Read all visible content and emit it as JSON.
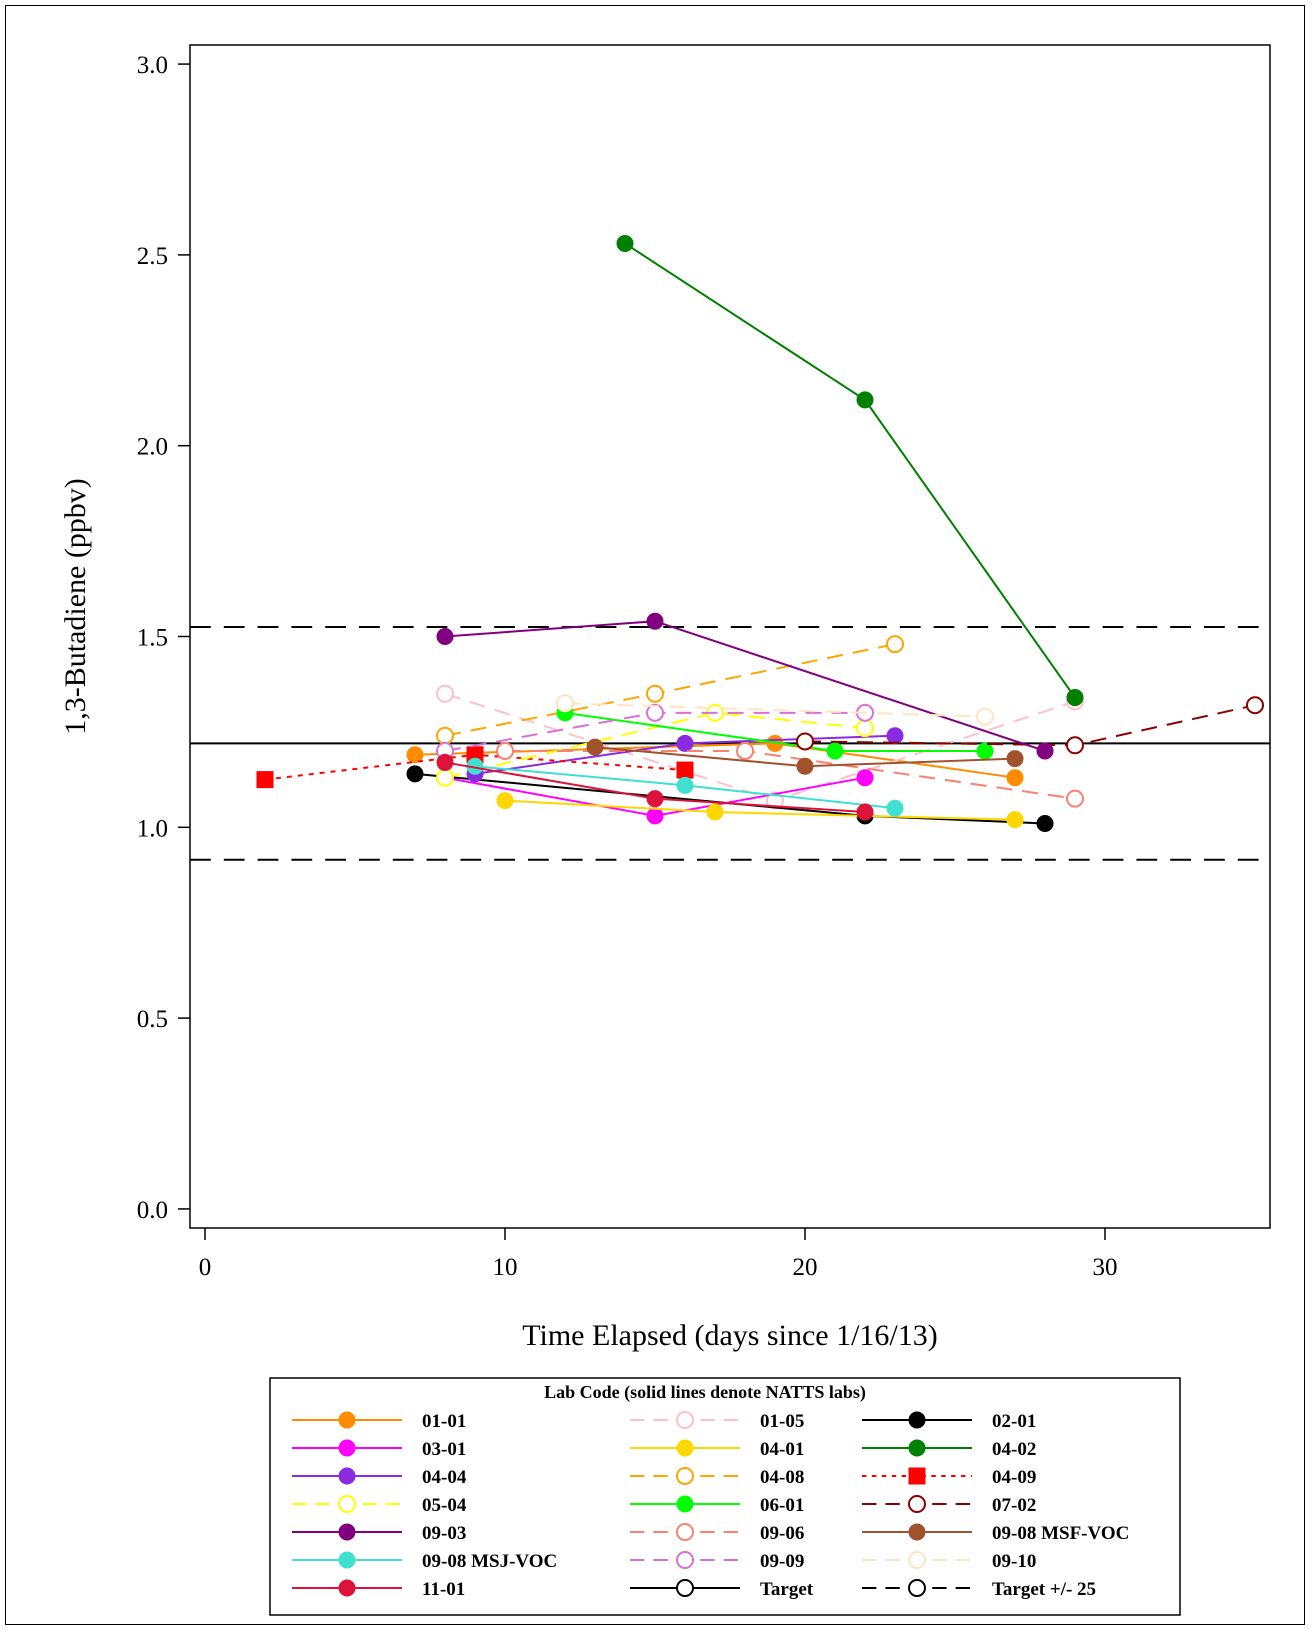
{
  "chart_data": {
    "type": "line",
    "title": "",
    "xlabel": "Time Elapsed (days since 1/16/13)",
    "ylabel": "1,3-Butadiene (ppbv)",
    "xlim": [
      -0.5,
      35.5
    ],
    "ylim": [
      -0.05,
      3.05
    ],
    "x_ticks": [
      0,
      10,
      20,
      30
    ],
    "x_tick_labels": [
      "0",
      "10",
      "20",
      "30"
    ],
    "y_ticks": [
      0,
      0.5,
      1,
      1.5,
      2,
      2.5,
      3
    ],
    "y_tick_labels": [
      "0.0",
      "0.5",
      "1.0",
      "1.5",
      "2.0",
      "2.5",
      "3.0"
    ],
    "grid": false,
    "legend_title": "Lab Code (solid lines denote NATTS labs)",
    "legend_position": "bottom",
    "reference_lines": [
      {
        "name": "Target",
        "y": 1.22,
        "color": "#000000",
        "dash": "solid"
      },
      {
        "name": "Target +/- 25",
        "y": 1.525,
        "color": "#000000",
        "dash": "dashed"
      },
      {
        "name": "Target +/- 25",
        "y": 0.915,
        "color": "#000000",
        "dash": "dashed"
      }
    ],
    "series": [
      {
        "name": "01-01",
        "color": "#FF8C00",
        "dash": "solid",
        "marker": "filled-circle",
        "x": [
          7,
          19,
          27
        ],
        "y": [
          1.19,
          1.22,
          1.13
        ]
      },
      {
        "name": "01-05",
        "color": "#FFC0CB",
        "dash": "dashed",
        "marker": "open-circle",
        "x": [
          8,
          19,
          29
        ],
        "y": [
          1.35,
          1.07,
          1.33
        ]
      },
      {
        "name": "02-01",
        "color": "#000000",
        "dash": "solid",
        "marker": "filled-circle",
        "x": [
          7,
          22,
          28
        ],
        "y": [
          1.14,
          1.03,
          1.01
        ]
      },
      {
        "name": "03-01",
        "color": "#FF00FF",
        "dash": "solid",
        "marker": "filled-circle",
        "x": [
          8,
          15,
          22
        ],
        "y": [
          1.13,
          1.03,
          1.13
        ]
      },
      {
        "name": "04-01",
        "color": "#FFD700",
        "dash": "solid",
        "marker": "filled-circle",
        "x": [
          10,
          17,
          27
        ],
        "y": [
          1.07,
          1.04,
          1.02
        ]
      },
      {
        "name": "04-02",
        "color": "#008000",
        "dash": "solid",
        "marker": "filled-circle",
        "x": [
          14,
          22,
          29
        ],
        "y": [
          2.53,
          2.12,
          1.34
        ]
      },
      {
        "name": "04-04",
        "color": "#8A2BE2",
        "dash": "solid",
        "marker": "filled-circle",
        "x": [
          9,
          16,
          23
        ],
        "y": [
          1.14,
          1.22,
          1.24
        ]
      },
      {
        "name": "04-08",
        "color": "#FFA500",
        "dash": "dashed",
        "marker": "open-circle",
        "x": [
          8,
          15,
          23
        ],
        "y": [
          1.24,
          1.35,
          1.48
        ]
      },
      {
        "name": "04-09",
        "color": "#FF0000",
        "dash": "dotted",
        "marker": "filled-square",
        "x": [
          2,
          9,
          16
        ],
        "y": [
          1.125,
          1.19,
          1.15
        ]
      },
      {
        "name": "05-04",
        "color": "#FFFF00",
        "dash": "dashed",
        "marker": "open-circle",
        "x": [
          8,
          17,
          22
        ],
        "y": [
          1.13,
          1.3,
          1.26
        ]
      },
      {
        "name": "06-01",
        "color": "#00FF00",
        "dash": "solid",
        "marker": "filled-circle",
        "x": [
          12,
          21,
          26
        ],
        "y": [
          1.3,
          1.2,
          1.2
        ]
      },
      {
        "name": "07-02",
        "color": "#8B0000",
        "dash": "dashed",
        "marker": "open-circle",
        "x": [
          20,
          29,
          35
        ],
        "y": [
          1.225,
          1.215,
          1.32
        ]
      },
      {
        "name": "09-03",
        "color": "#800080",
        "dash": "solid",
        "marker": "filled-circle",
        "x": [
          8,
          15,
          28
        ],
        "y": [
          1.5,
          1.54,
          1.2
        ]
      },
      {
        "name": "09-06",
        "color": "#FA8072",
        "dash": "dashed",
        "marker": "open-circle",
        "x": [
          10,
          18,
          29
        ],
        "y": [
          1.2,
          1.2,
          1.075
        ]
      },
      {
        "name": "09-08 MSF-VOC",
        "color": "#A0522D",
        "dash": "solid",
        "marker": "filled-circle",
        "x": [
          13,
          20,
          27
        ],
        "y": [
          1.21,
          1.16,
          1.18
        ]
      },
      {
        "name": "09-08 MSJ-VOC",
        "color": "#40E0D0",
        "dash": "solid",
        "marker": "filled-circle",
        "x": [
          9,
          16,
          23
        ],
        "y": [
          1.16,
          1.11,
          1.05
        ]
      },
      {
        "name": "09-09",
        "color": "#DA70D6",
        "dash": "dashed",
        "marker": "open-circle",
        "x": [
          8,
          15,
          22
        ],
        "y": [
          1.2,
          1.3,
          1.3
        ]
      },
      {
        "name": "09-10",
        "color": "#FFE4C4",
        "dash": "dashed",
        "marker": "open-circle",
        "x": [
          12,
          26
        ],
        "y": [
          1.325,
          1.29
        ]
      },
      {
        "name": "11-01",
        "color": "#DC143C",
        "dash": "solid",
        "marker": "filled-circle",
        "x": [
          8,
          15,
          22
        ],
        "y": [
          1.17,
          1.075,
          1.04
        ]
      }
    ],
    "legend_entries": [
      {
        "label": "01-01",
        "color": "#FF8C00",
        "dash": "solid",
        "marker": "filled-circle"
      },
      {
        "label": "01-05",
        "color": "#FFC0CB",
        "dash": "dashed",
        "marker": "open-circle"
      },
      {
        "label": "02-01",
        "color": "#000000",
        "dash": "solid",
        "marker": "filled-circle"
      },
      {
        "label": "03-01",
        "color": "#FF00FF",
        "dash": "solid",
        "marker": "filled-circle"
      },
      {
        "label": "04-01",
        "color": "#FFD700",
        "dash": "solid",
        "marker": "filled-circle"
      },
      {
        "label": "04-02",
        "color": "#008000",
        "dash": "solid",
        "marker": "filled-circle"
      },
      {
        "label": "04-04",
        "color": "#8A2BE2",
        "dash": "solid",
        "marker": "filled-circle"
      },
      {
        "label": "04-08",
        "color": "#FFA500",
        "dash": "dashed",
        "marker": "open-circle"
      },
      {
        "label": "04-09",
        "color": "#FF0000",
        "dash": "dotted",
        "marker": "filled-square"
      },
      {
        "label": "05-04",
        "color": "#FFFF00",
        "dash": "dashed",
        "marker": "open-circle"
      },
      {
        "label": "06-01",
        "color": "#00FF00",
        "dash": "solid",
        "marker": "filled-circle"
      },
      {
        "label": "07-02",
        "color": "#8B0000",
        "dash": "dashed",
        "marker": "open-circle"
      },
      {
        "label": "09-03",
        "color": "#800080",
        "dash": "solid",
        "marker": "filled-circle"
      },
      {
        "label": "09-06",
        "color": "#FA8072",
        "dash": "dashed",
        "marker": "open-circle"
      },
      {
        "label": "09-08 MSF-VOC",
        "color": "#A0522D",
        "dash": "solid",
        "marker": "filled-circle"
      },
      {
        "label": "09-08 MSJ-VOC",
        "color": "#40E0D0",
        "dash": "solid",
        "marker": "filled-circle"
      },
      {
        "label": "09-09",
        "color": "#DA70D6",
        "dash": "dashed",
        "marker": "open-circle"
      },
      {
        "label": "09-10",
        "color": "#FFE4C4",
        "dash": "dashed",
        "marker": "open-circle"
      },
      {
        "label": "11-01",
        "color": "#DC143C",
        "dash": "solid",
        "marker": "filled-circle"
      },
      {
        "label": "Target",
        "color": "#000000",
        "dash": "solid",
        "marker": "open-circle"
      },
      {
        "label": "Target +/- 25",
        "color": "#000000",
        "dash": "dashed",
        "marker": "open-circle"
      }
    ]
  }
}
